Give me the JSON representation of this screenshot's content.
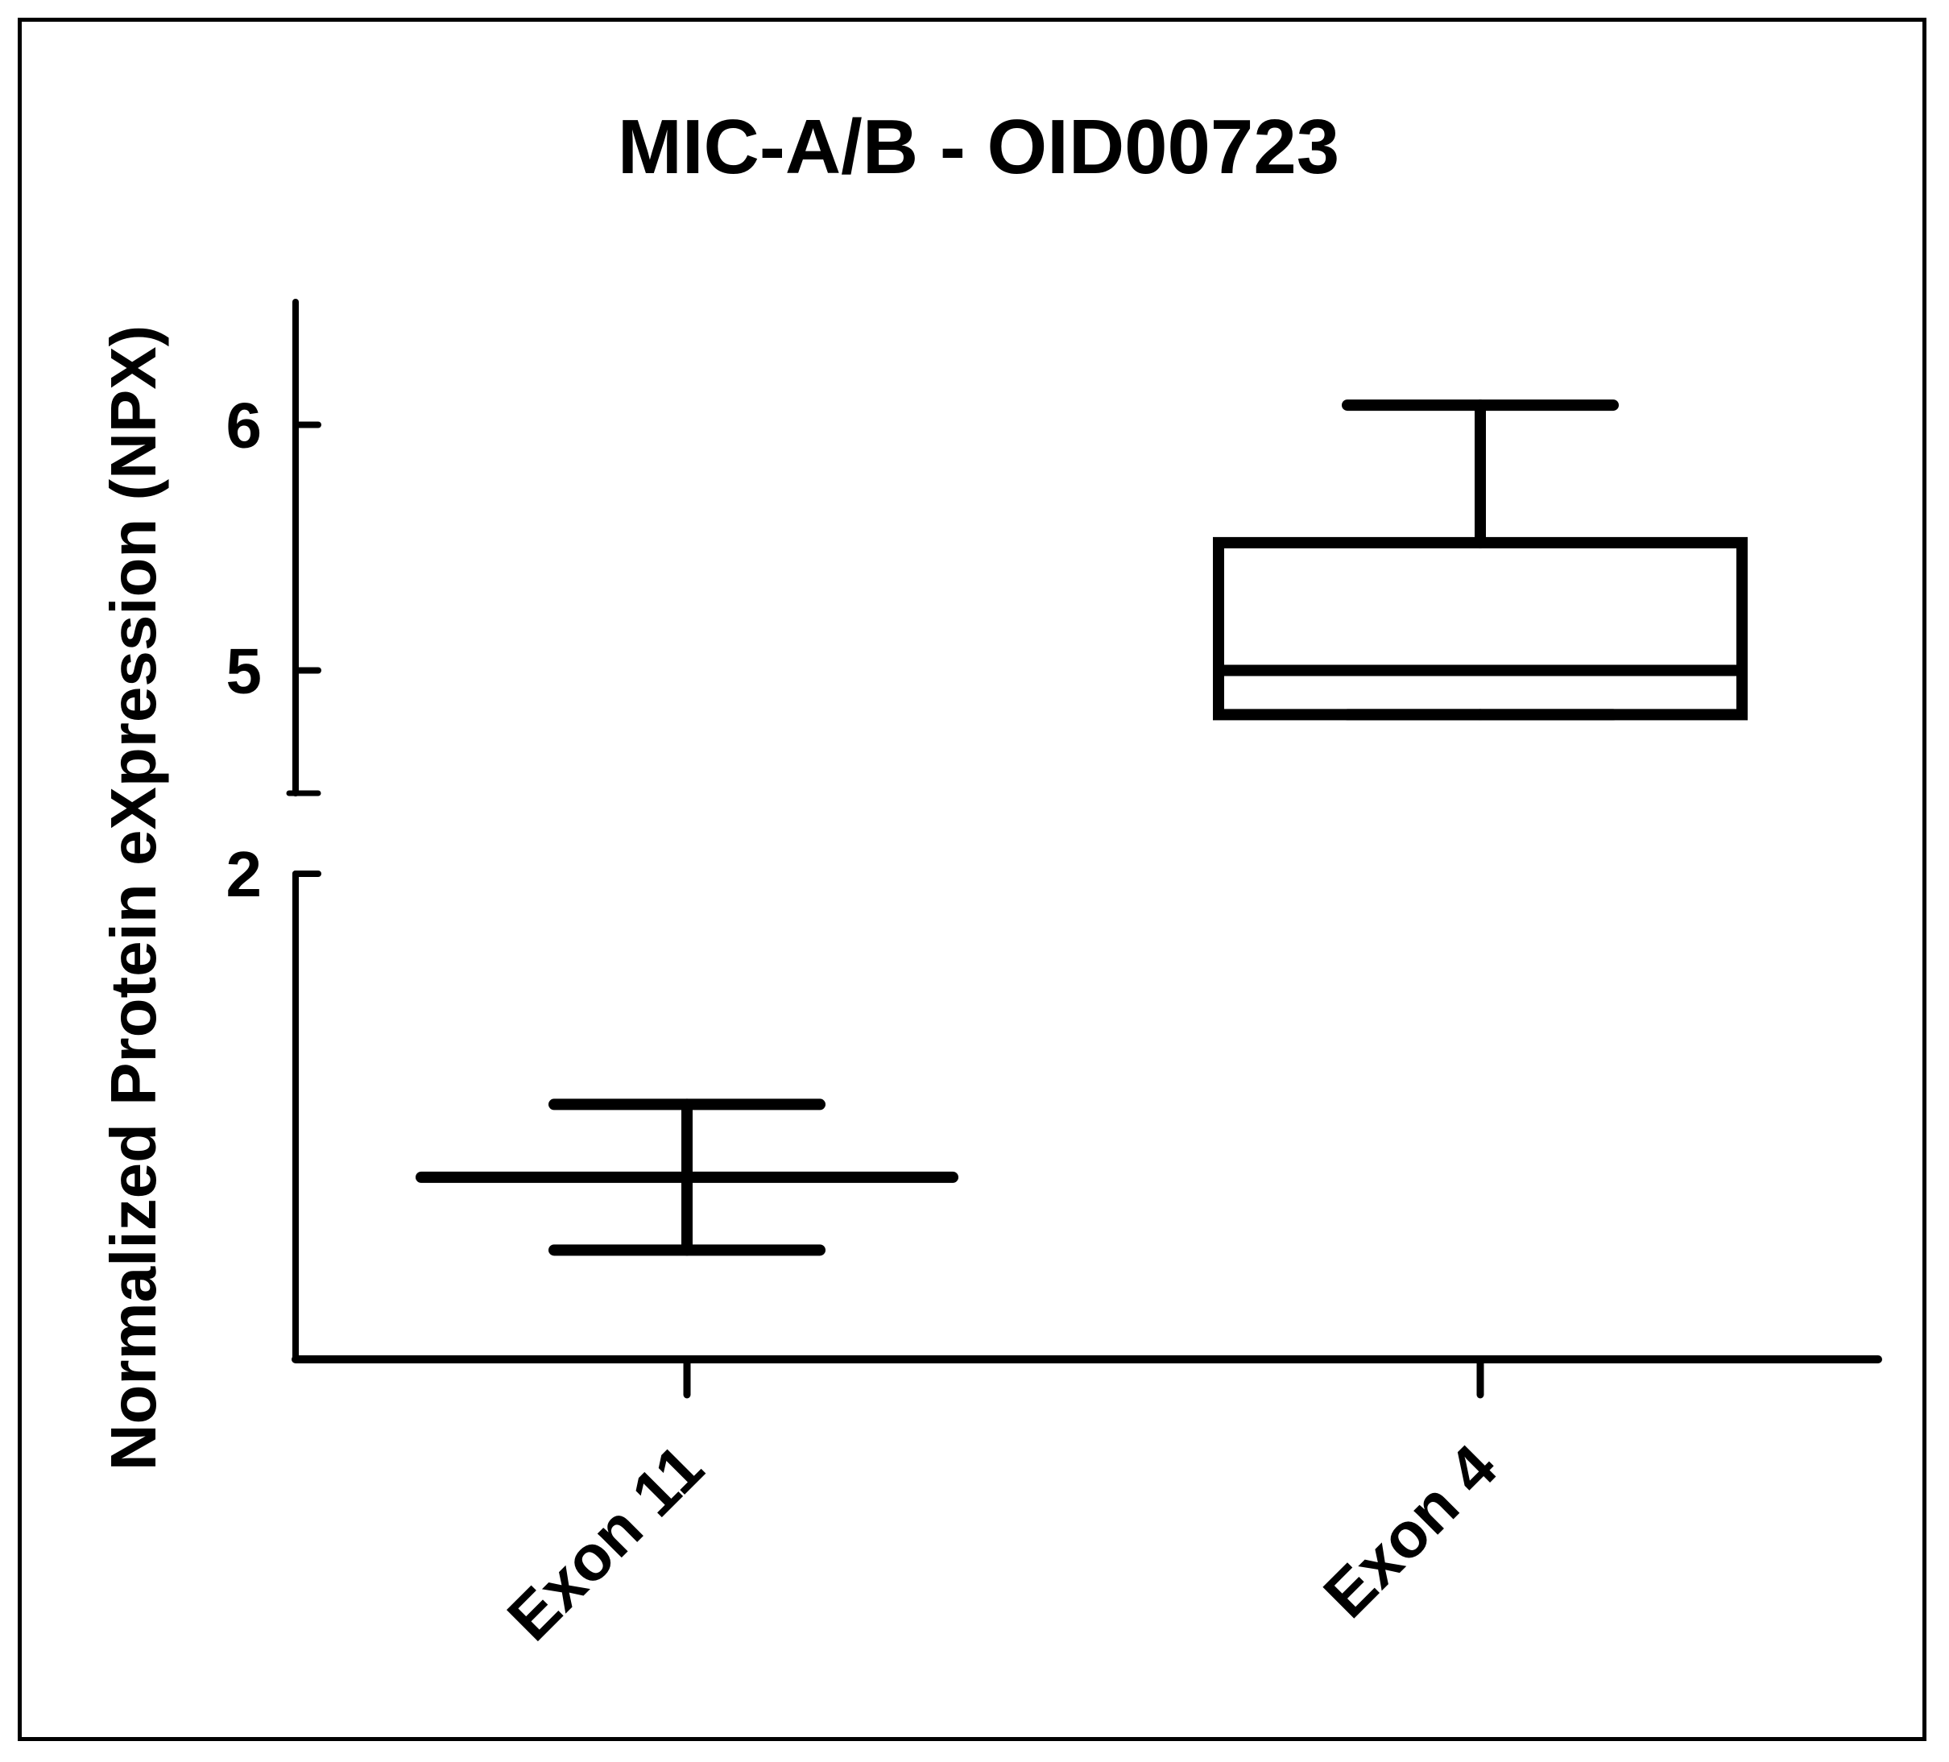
{
  "chart_data": {
    "type": "box",
    "title": "MIC-A/B - OID00723",
    "ylabel": "Normalized Protein eXpression (NPX)",
    "xlabel": "",
    "categories": [
      "Exon 11",
      "Exon 4"
    ],
    "y_axis_break": {
      "lower_segment_max": 2,
      "upper_segment_min": 4.5
    },
    "yticks_labeled": [
      2,
      5,
      6
    ],
    "boxes": [
      {
        "category": "Exon 11",
        "min": 0.45,
        "q1": 0.75,
        "median": 0.75,
        "q3": 0.75,
        "max": 1.05
      },
      {
        "category": "Exon 4",
        "min": 4.82,
        "q1": 4.82,
        "median": 5.0,
        "q3": 5.52,
        "max": 6.08
      }
    ],
    "grid": false,
    "legend": "none",
    "colors": {
      "stroke": "#000000",
      "background": "#ffffff"
    }
  }
}
